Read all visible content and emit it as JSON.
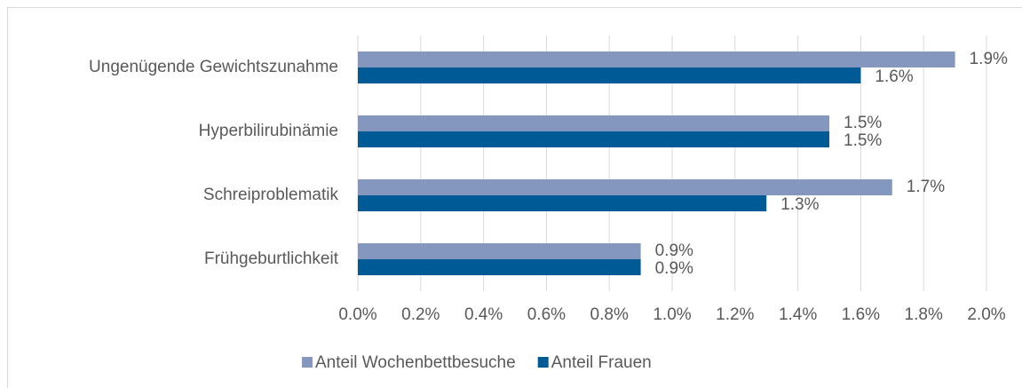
{
  "chart_data": {
    "type": "bar",
    "orientation": "horizontal",
    "categories": [
      "Ungenügende Gewichtszunahme",
      "Hyperbilirubinämie",
      "Schreiproblematik",
      "Frühgeburtlichkeit"
    ],
    "series": [
      {
        "name": "Anteil Wochenbettbesuche",
        "color": "#8497bf",
        "values": [
          1.9,
          1.5,
          1.7,
          0.9
        ],
        "value_labels": [
          "1.9%",
          "1.5%",
          "1.7%",
          "0.9%"
        ]
      },
      {
        "name": "Anteil Frauen",
        "color": "#005a96",
        "values": [
          1.6,
          1.5,
          1.3,
          0.9
        ],
        "value_labels": [
          "1.6%",
          "1.5%",
          "1.3%",
          "0.9%"
        ]
      }
    ],
    "xlim": [
      0,
      2.0
    ],
    "xticks": [
      {
        "value": 0,
        "label": "0.0%"
      },
      {
        "value": 0.2,
        "label": "0.2%"
      },
      {
        "value": 0.4,
        "label": "0.4%"
      },
      {
        "value": 0.6,
        "label": "0.6%"
      },
      {
        "value": 0.8,
        "label": "0.8%"
      },
      {
        "value": 1.0,
        "label": "1.0%"
      },
      {
        "value": 1.2,
        "label": "1.2%"
      },
      {
        "value": 1.4,
        "label": "1.4%"
      },
      {
        "value": 1.6,
        "label": "1.6%"
      },
      {
        "value": 1.8,
        "label": "1.8%"
      },
      {
        "value": 2.0,
        "label": "2.0%"
      }
    ],
    "grid": true,
    "legend": "bottom"
  }
}
